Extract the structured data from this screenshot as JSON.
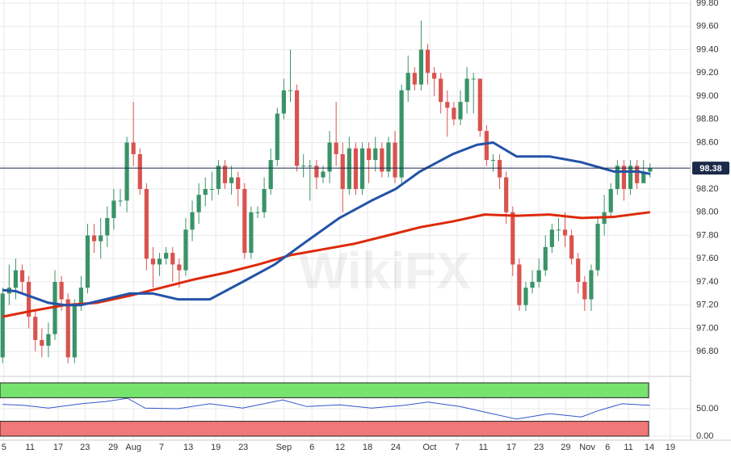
{
  "chart_data": [
    {
      "type": "candlestick",
      "watermark": "WikiFX",
      "up_color": "#3a9368",
      "down_color": "#d9534f",
      "xlim": [
        -0.4,
        105.2
      ],
      "xticks": [
        {
          "value": 0.2,
          "label": "5"
        },
        {
          "value": 4.2,
          "label": "11"
        },
        {
          "value": 8.5,
          "label": "17"
        },
        {
          "value": 12.6,
          "label": "23"
        },
        {
          "value": 16.9,
          "label": "29"
        },
        {
          "value": 20.0,
          "label": "Aug"
        },
        {
          "value": 24.3,
          "label": "7"
        },
        {
          "value": 28.4,
          "label": "13"
        },
        {
          "value": 32.6,
          "label": "19"
        },
        {
          "value": 36.8,
          "label": "23"
        },
        {
          "value": 43.0,
          "label": "Sep"
        },
        {
          "value": 47.3,
          "label": "6"
        },
        {
          "value": 51.6,
          "label": "12"
        },
        {
          "value": 55.8,
          "label": "18"
        },
        {
          "value": 60.1,
          "label": "24"
        },
        {
          "value": 65.3,
          "label": "Oct"
        },
        {
          "value": 69.5,
          "label": "7"
        },
        {
          "value": 73.5,
          "label": "11"
        },
        {
          "value": 77.8,
          "label": "17"
        },
        {
          "value": 82.0,
          "label": "23"
        },
        {
          "value": 86.1,
          "label": "29"
        },
        {
          "value": 89.4,
          "label": "Nov"
        },
        {
          "value": 92.5,
          "label": "6"
        },
        {
          "value": 95.7,
          "label": "11"
        },
        {
          "value": 98.9,
          "label": "14"
        },
        {
          "value": 102.1,
          "label": "19"
        }
      ],
      "ylim": [
        96.6,
        99.8
      ],
      "yticks": [
        {
          "value": 96.8,
          "label": "96.80"
        },
        {
          "value": 97.0,
          "label": "97.00"
        },
        {
          "value": 97.2,
          "label": "97.20"
        },
        {
          "value": 97.4,
          "label": "97.40"
        },
        {
          "value": 97.6,
          "label": "97.60"
        },
        {
          "value": 97.8,
          "label": "97.80"
        },
        {
          "value": 98.0,
          "label": "98.00"
        },
        {
          "value": 98.2,
          "label": "98.20"
        },
        {
          "value": 98.4,
          "label": "98.40"
        },
        {
          "value": 98.6,
          "label": "98.60"
        },
        {
          "value": 98.8,
          "label": "98.80"
        },
        {
          "value": 99.0,
          "label": "99.00"
        },
        {
          "value": 99.2,
          "label": "99.20"
        },
        {
          "value": 99.4,
          "label": "99.40"
        },
        {
          "value": 99.6,
          "label": "99.60"
        },
        {
          "value": 99.8,
          "label": "99.80"
        }
      ],
      "last_price": 98.38,
      "last_price_color": "#1c2a4a",
      "open": [
        96.75,
        97.3,
        97.35,
        97.5,
        97.4,
        97.1,
        96.9,
        96.85,
        96.95,
        97.4,
        97.25,
        96.75,
        97.2,
        97.35,
        97.8,
        97.75,
        97.8,
        97.95,
        98.1,
        98.1,
        98.6,
        98.5,
        98.2,
        97.6,
        97.55,
        97.6,
        97.65,
        97.55,
        97.5,
        97.85,
        98.0,
        98.15,
        98.2,
        98.2,
        98.4,
        98.25,
        98.3,
        98.2,
        97.65,
        98.0,
        98.0,
        98.2,
        98.45,
        98.85,
        99.05,
        99.05,
        98.4,
        98.4,
        98.4,
        98.3,
        98.35,
        98.6,
        98.5,
        98.2,
        98.55,
        98.2,
        98.55,
        98.45,
        98.55,
        98.35,
        98.6,
        98.3,
        99.05,
        99.2,
        99.1,
        99.4,
        99.2,
        99.15,
        98.95,
        98.9,
        98.8,
        98.95,
        99.15,
        99.15,
        98.7,
        98.45,
        98.45,
        98.3,
        98.0,
        97.55,
        97.2,
        97.35,
        97.4,
        97.5,
        97.7,
        97.85,
        97.85,
        97.8,
        97.6,
        97.4,
        97.25,
        97.5,
        97.9,
        98.0,
        98.2,
        98.4,
        98.2,
        98.4,
        98.25,
        98.35
      ],
      "high": [
        97.35,
        97.55,
        97.6,
        97.55,
        97.45,
        97.15,
        97.0,
        97.05,
        97.5,
        97.45,
        97.3,
        97.25,
        97.45,
        97.9,
        97.9,
        97.95,
        98.05,
        98.2,
        98.2,
        98.65,
        98.95,
        98.55,
        98.25,
        97.7,
        97.65,
        97.7,
        97.7,
        97.6,
        97.95,
        98.1,
        98.25,
        98.3,
        98.35,
        98.45,
        98.45,
        98.4,
        98.35,
        98.25,
        98.05,
        98.05,
        98.3,
        98.55,
        98.9,
        99.15,
        99.4,
        99.1,
        98.5,
        98.45,
        98.45,
        98.4,
        98.7,
        98.95,
        98.6,
        98.65,
        98.6,
        98.6,
        98.6,
        98.65,
        98.6,
        98.65,
        98.7,
        99.1,
        99.35,
        99.25,
        99.65,
        99.45,
        99.25,
        99.2,
        99.05,
        98.95,
        99.05,
        99.25,
        99.2,
        99.15,
        98.75,
        98.5,
        98.5,
        98.35,
        98.05,
        97.6,
        97.4,
        97.5,
        97.6,
        97.8,
        97.9,
        97.95,
        98.0,
        97.85,
        97.65,
        97.45,
        97.55,
        97.95,
        98.15,
        98.25,
        98.45,
        98.45,
        98.45,
        98.45,
        98.45,
        98.42
      ],
      "low": [
        96.7,
        97.2,
        97.25,
        97.3,
        97.0,
        96.8,
        96.75,
        96.75,
        96.9,
        97.15,
        96.7,
        96.7,
        97.15,
        97.3,
        97.65,
        97.6,
        97.7,
        97.85,
        98.05,
        98.0,
        98.4,
        98.15,
        97.5,
        97.35,
        97.45,
        97.55,
        97.4,
        97.35,
        97.45,
        97.75,
        97.9,
        98.05,
        98.1,
        98.15,
        98.2,
        98.15,
        98.05,
        97.6,
        97.6,
        97.95,
        97.95,
        98.15,
        98.4,
        98.8,
        98.95,
        98.35,
        98.3,
        98.1,
        98.2,
        98.25,
        98.25,
        98.4,
        98.0,
        98.15,
        98.15,
        98.15,
        98.25,
        98.35,
        98.3,
        98.3,
        98.25,
        98.25,
        98.95,
        99.05,
        99.05,
        99.1,
        99.0,
        98.85,
        98.65,
        98.75,
        98.75,
        98.85,
        98.85,
        98.65,
        98.4,
        98.35,
        98.2,
        97.9,
        97.45,
        97.15,
        97.15,
        97.3,
        97.35,
        97.45,
        97.65,
        97.75,
        97.7,
        97.55,
        97.3,
        97.15,
        97.15,
        97.45,
        97.8,
        97.95,
        98.15,
        98.1,
        98.15,
        98.2,
        98.25,
        98.3
      ],
      "close": [
        97.3,
        97.35,
        97.5,
        97.4,
        97.1,
        96.9,
        96.85,
        96.95,
        97.4,
        97.25,
        96.75,
        97.2,
        97.35,
        97.8,
        97.75,
        97.8,
        97.95,
        98.1,
        98.1,
        98.6,
        98.5,
        98.2,
        97.6,
        97.55,
        97.6,
        97.65,
        97.55,
        97.5,
        97.85,
        98.0,
        98.15,
        98.2,
        98.2,
        98.4,
        98.25,
        98.3,
        98.2,
        97.65,
        98.0,
        98.0,
        98.2,
        98.45,
        98.85,
        99.05,
        99.05,
        98.4,
        98.4,
        98.4,
        98.3,
        98.35,
        98.6,
        98.5,
        98.2,
        98.55,
        98.2,
        98.55,
        98.45,
        98.55,
        98.35,
        98.6,
        98.3,
        99.05,
        99.2,
        99.1,
        99.4,
        99.2,
        99.15,
        98.95,
        98.9,
        98.8,
        98.95,
        99.15,
        99.15,
        98.7,
        98.45,
        98.45,
        98.3,
        98.0,
        97.55,
        97.2,
        97.35,
        97.4,
        97.5,
        97.7,
        97.85,
        97.85,
        97.8,
        97.6,
        97.4,
        97.25,
        97.5,
        97.9,
        98.0,
        98.2,
        98.4,
        98.2,
        98.4,
        98.25,
        98.35,
        98.38
      ],
      "lines": [
        {
          "color": "#dd2a0c",
          "x": [
            0,
            4.5,
            9.5,
            14.4,
            19.4,
            24.3,
            29.2,
            34.2,
            39.1,
            44,
            49,
            53.9,
            58.9,
            63.8,
            68.8,
            73.7,
            78.6,
            83.6,
            88.5,
            93.5,
            99
          ],
          "values": [
            97.1,
            97.15,
            97.2,
            97.22,
            97.28,
            97.35,
            97.42,
            97.48,
            97.55,
            97.63,
            97.68,
            97.73,
            97.8,
            97.87,
            97.92,
            97.98,
            97.97,
            97.98,
            97.95,
            97.96,
            98.0
          ]
        },
        {
          "color": "#2353a8",
          "x": [
            0,
            2,
            4.5,
            7,
            9.5,
            12,
            15.7,
            19.4,
            23,
            26.8,
            31.7,
            36.7,
            41.6,
            46.5,
            51.5,
            56.4,
            60.1,
            63.8,
            68.8,
            72.5,
            75,
            78.6,
            83.6,
            88.5,
            93.5,
            97.2,
            99
          ],
          "values": [
            97.33,
            97.32,
            97.27,
            97.22,
            97.2,
            97.2,
            97.25,
            97.3,
            97.3,
            97.25,
            97.25,
            97.4,
            97.55,
            97.75,
            97.95,
            98.1,
            98.2,
            98.35,
            98.5,
            98.58,
            98.6,
            98.48,
            98.48,
            98.43,
            98.35,
            98.35,
            98.33
          ]
        }
      ]
    },
    {
      "type": "line",
      "xlim": [
        -0.4,
        105.2
      ],
      "ylim": [
        0,
        100
      ],
      "yticks": [
        {
          "value": 0,
          "label": "0.00"
        },
        {
          "value": 50,
          "label": "50.00"
        }
      ],
      "bands": [
        {
          "from": 70,
          "to": 100,
          "color": "#77e36f"
        },
        {
          "from": 0,
          "to": 30,
          "color": "#f07878"
        }
      ],
      "color": "#3355cc",
      "x": [
        0,
        3.3,
        7,
        12,
        15.7,
        19.1,
        21.8,
        26.8,
        31.7,
        36.7,
        42.8,
        46.5,
        51.5,
        56.4,
        61.3,
        65,
        69.9,
        73.7,
        78.6,
        83.6,
        88.5,
        91,
        94.7,
        99
      ],
      "values": [
        58,
        56,
        51,
        59,
        63,
        69,
        51,
        50,
        59,
        51,
        66,
        54,
        57,
        51,
        56,
        62,
        54,
        44,
        31,
        41,
        35,
        46,
        59,
        56
      ]
    }
  ]
}
